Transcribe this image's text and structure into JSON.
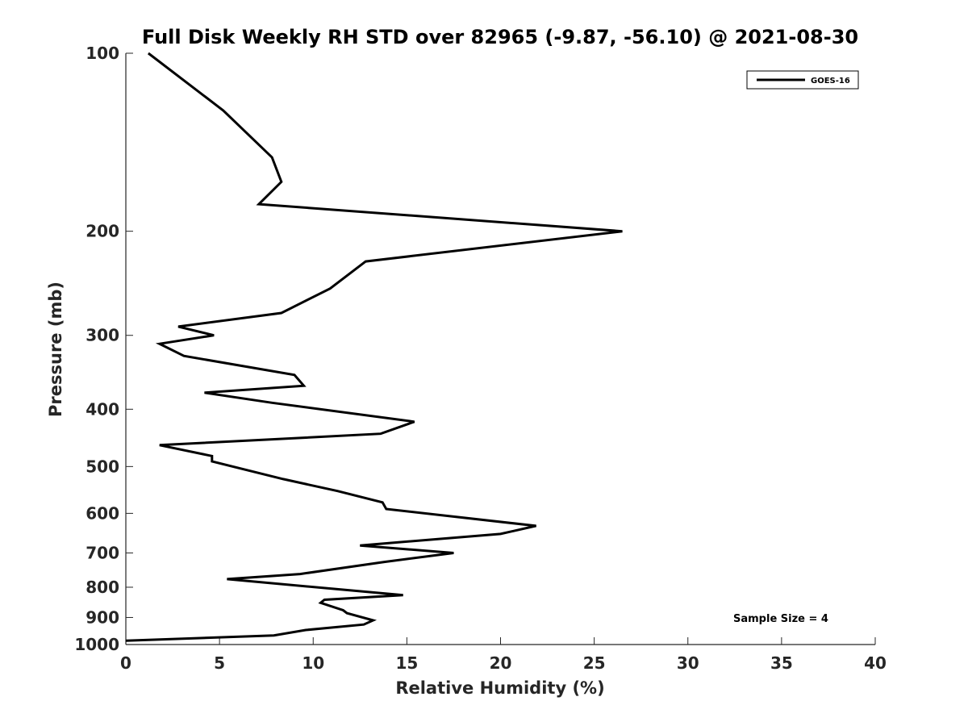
{
  "chart_data": {
    "type": "line",
    "title": "Full Disk Weekly RH STD over 82965 (-9.87, -56.10) @ 2021-08-30",
    "xlabel": "Relative Humidity (%)",
    "ylabel": "Pressure (mb)",
    "xlim": [
      0,
      40
    ],
    "ylim": [
      100,
      1000
    ],
    "yscale": "log",
    "y_reversed": true,
    "x_ticks": [
      0,
      5,
      10,
      15,
      20,
      25,
      30,
      35,
      40
    ],
    "y_ticks": [
      100,
      200,
      300,
      400,
      500,
      600,
      700,
      800,
      900,
      1000
    ],
    "grid": false,
    "legend_position": "top-right",
    "annotation": "Sample Size = 4",
    "colors": {
      "series": "#000000",
      "axis": "#262626"
    },
    "series": [
      {
        "name": "GOES-16",
        "x": [
          1.2,
          5.2,
          7.8,
          8.3,
          7.1,
          26.5,
          12.8,
          10.9,
          8.3,
          2.8,
          4.7,
          1.8,
          3.1,
          9.0,
          9.5,
          4.2,
          7.8,
          15.4,
          13.6,
          1.8,
          4.6,
          4.6,
          8.4,
          11.3,
          13.7,
          13.9,
          21.9,
          20.0,
          12.5,
          17.5,
          13.8,
          9.3,
          5.4,
          14.8,
          10.6,
          10.4,
          11.6,
          11.8,
          13.2,
          12.7,
          9.6,
          7.9,
          0.0
        ],
        "y": [
          100,
          125,
          150,
          165,
          180,
          200,
          225,
          250,
          275,
          290,
          300,
          310,
          325,
          350,
          365,
          375,
          390,
          420,
          440,
          460,
          480,
          490,
          525,
          550,
          575,
          590,
          630,
          650,
          680,
          700,
          725,
          760,
          775,
          825,
          840,
          850,
          875,
          885,
          910,
          925,
          945,
          965,
          985
        ]
      }
    ]
  }
}
